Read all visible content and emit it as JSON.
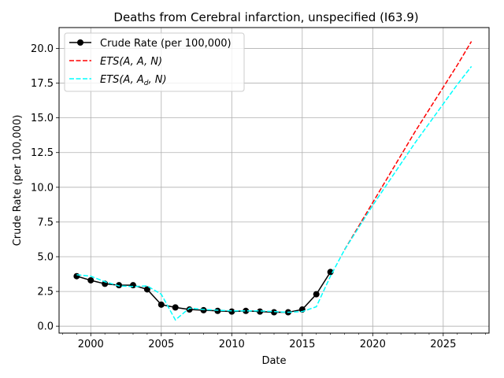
{
  "chart_data": {
    "type": "line",
    "title": "Deaths from Cerebral infarction, unspecified (I63.9)",
    "xlabel": "Date",
    "ylabel": "Crude Rate (per 100,000)",
    "xlim": [
      1997.75,
      2028.25
    ],
    "ylim": [
      -0.5,
      21.5
    ],
    "x_ticks": [
      2000,
      2005,
      2010,
      2015,
      2020,
      2025
    ],
    "y_ticks": [
      0.0,
      2.5,
      5.0,
      7.5,
      10.0,
      12.5,
      15.0,
      17.5,
      20.0
    ],
    "y_tick_labels": [
      "0.0",
      "2.5",
      "5.0",
      "7.5",
      "10.0",
      "12.5",
      "15.0",
      "17.5",
      "20.0"
    ],
    "grid": true,
    "legend_position": "top-left",
    "series": [
      {
        "name": "Crude Rate (per 100,000)",
        "color": "#000000",
        "style": "solid",
        "marker": "circle",
        "x": [
          1999,
          2000,
          2001,
          2002,
          2003,
          2004,
          2005,
          2006,
          2007,
          2008,
          2009,
          2010,
          2011,
          2012,
          2013,
          2014,
          2015,
          2016,
          2017
        ],
        "y": [
          3.6,
          3.3,
          3.05,
          2.95,
          2.95,
          2.65,
          1.55,
          1.35,
          1.2,
          1.15,
          1.1,
          1.05,
          1.1,
          1.05,
          1.0,
          1.0,
          1.2,
          2.3,
          3.9
        ]
      },
      {
        "name": "ETS(A, A, N)",
        "legend_math": {
          "prefix": "ETS(A, A, N)",
          "sub": "",
          "suffix": ""
        },
        "color": "#ff0000",
        "style": "dashed",
        "marker": "none",
        "x": [
          2018,
          2019,
          2020,
          2021,
          2022,
          2023,
          2024,
          2025,
          2026,
          2027
        ],
        "y": [
          5.5,
          7.2,
          8.9,
          10.6,
          12.3,
          14.0,
          15.6,
          17.2,
          18.8,
          20.5
        ]
      },
      {
        "name": "ETS(A, Ad, N)",
        "legend_math": {
          "prefix": "ETS(A, A",
          "sub": "d",
          "suffix": ", N)"
        },
        "color": "#00ffff",
        "style": "dashed",
        "marker": "none",
        "x": [
          1999,
          2000,
          2001,
          2002,
          2003,
          2004,
          2005,
          2006,
          2007,
          2008,
          2009,
          2010,
          2011,
          2012,
          2013,
          2014,
          2015,
          2016,
          2017,
          2018,
          2019,
          2020,
          2021,
          2022,
          2023,
          2024,
          2025,
          2026,
          2027
        ],
        "y": [
          3.7,
          3.6,
          3.2,
          2.9,
          2.85,
          2.9,
          2.3,
          0.45,
          1.3,
          1.2,
          1.15,
          1.1,
          1.1,
          1.1,
          1.05,
          1.0,
          1.05,
          1.4,
          3.6,
          5.5,
          7.1,
          8.7,
          10.2,
          11.7,
          13.2,
          14.6,
          16.0,
          17.4,
          18.7
        ]
      }
    ]
  }
}
